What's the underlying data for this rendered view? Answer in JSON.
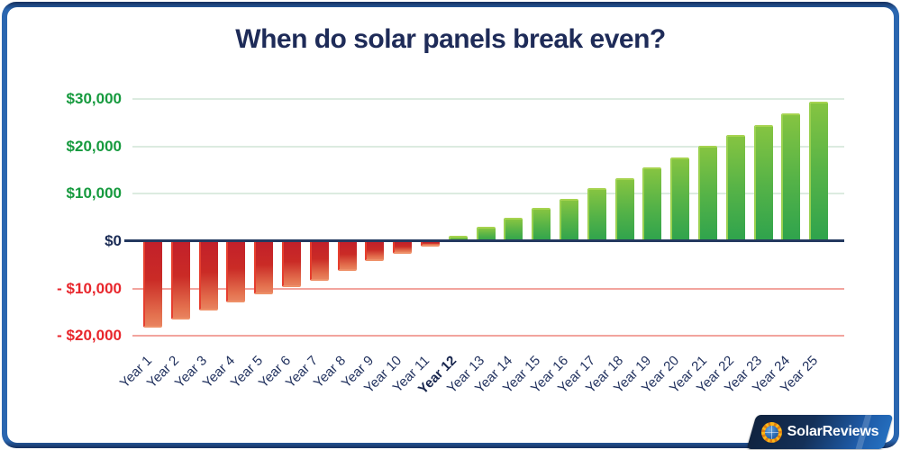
{
  "title": "When do solar panels break even?",
  "chart_data": {
    "type": "bar",
    "title": "When do solar panels break even?",
    "categories": [
      "Year 1",
      "Year 2",
      "Year 3",
      "Year 4",
      "Year 5",
      "Year 6",
      "Year 7",
      "Year 8",
      "Year 9",
      "Year 10",
      "Year 11",
      "Year 12",
      "Year 13",
      "Year 14",
      "Year 15",
      "Year 16",
      "Year 17",
      "Year 18",
      "Year 19",
      "Year 20",
      "Year 21",
      "Year 22",
      "Year 23",
      "Year 24",
      "Year 25"
    ],
    "values": [
      -18000,
      -16400,
      -14500,
      -12800,
      -11100,
      -9600,
      -8100,
      -6000,
      -4000,
      -2500,
      -1000,
      1200,
      3000,
      5000,
      7000,
      9000,
      11200,
      13400,
      15500,
      17700,
      20100,
      22400,
      24600,
      27000,
      29400
    ],
    "xlabel": "",
    "ylabel": "",
    "ylim": [
      -20000,
      30000
    ],
    "ytick_interval": 10000,
    "grid": "horizontal",
    "legend": "none",
    "break_even_category": "Year 12",
    "y_ticks": [
      {
        "label": "$30,000",
        "value": 30000,
        "color": "#169a3e"
      },
      {
        "label": "$20,000",
        "value": 20000,
        "color": "#169a3e"
      },
      {
        "label": "$10,000",
        "value": 10000,
        "color": "#169a3e"
      },
      {
        "label": "$0",
        "value": 0,
        "color": "#1a2b55"
      },
      {
        "label": "- $10,000",
        "value": -10000,
        "color": "#e8262c"
      },
      {
        "label": "- $20,000",
        "value": -20000,
        "color": "#e8262c"
      }
    ]
  },
  "colors": {
    "frame_blue": "#2a66b0",
    "frame_dark": "#16305e",
    "title_navy": "#1e2b58",
    "positive_bar_top": "#85c441",
    "positive_bar_bottom": "#2ea34d",
    "negative_bar_top": "#c2202a",
    "negative_bar_bottom": "#e8825f",
    "positive_grid": "#dcebe0",
    "negative_grid": "#f2a49e",
    "zero_line": "#24395f"
  },
  "logo": {
    "text": "SolarReviews",
    "icon": "sun-globe-icon"
  }
}
